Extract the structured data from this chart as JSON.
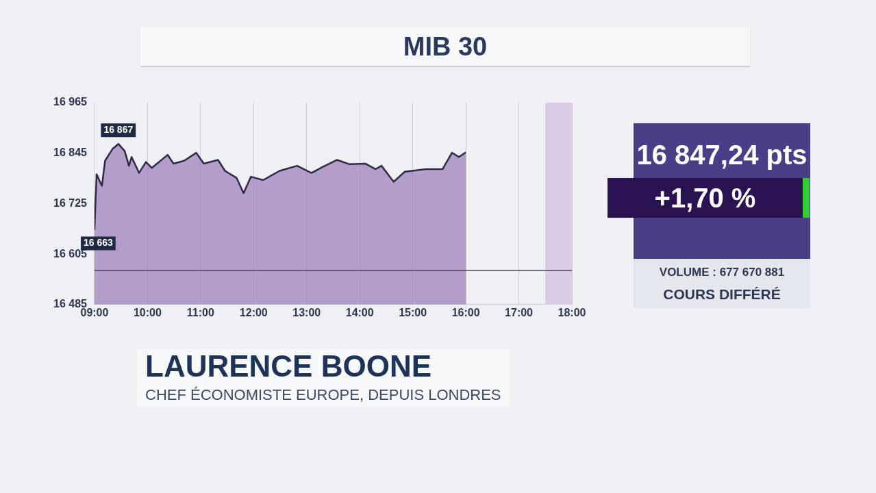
{
  "chart_data": {
    "type": "area",
    "title": "MIB 30",
    "x": [
      9,
      9.04,
      9.14,
      9.2,
      9.34,
      9.45,
      9.57,
      9.65,
      9.7,
      9.84,
      9.97,
      10.08,
      10.38,
      10.49,
      10.69,
      10.92,
      11.06,
      11.33,
      11.46,
      11.68,
      11.81,
      11.95,
      12.18,
      12.49,
      12.82,
      13.09,
      13.3,
      13.57,
      13.8,
      14.11,
      14.3,
      14.41,
      14.64,
      14.85,
      15.25,
      15.56,
      15.74,
      15.87,
      16
    ],
    "series": [
      {
        "color": "#2e2a4a",
        "values": [
          16663,
          16795,
          16767,
          16827,
          16855,
          16867,
          16850,
          16815,
          16836,
          16798,
          16824,
          16810,
          16841,
          16820,
          16827,
          16846,
          16820,
          16829,
          16803,
          16786,
          16750,
          16789,
          16781,
          16803,
          16815,
          16798,
          16812,
          16829,
          16819,
          16820,
          16807,
          16815,
          16777,
          16801,
          16807,
          16807,
          16846,
          16836,
          16847
        ]
      }
    ],
    "xlim": [
      9,
      18
    ],
    "xticks": [
      {
        "value": 9,
        "label": "09:00"
      },
      {
        "value": 10,
        "label": "10:00"
      },
      {
        "value": 11,
        "label": "11:00"
      },
      {
        "value": 12,
        "label": "12:00"
      },
      {
        "value": 13,
        "label": "13:00"
      },
      {
        "value": 14,
        "label": "14:00"
      },
      {
        "value": 15,
        "label": "15:00"
      },
      {
        "value": 16,
        "label": "16:00"
      },
      {
        "value": 17,
        "label": "17:00"
      },
      {
        "value": 18,
        "label": "18:00"
      }
    ],
    "ylim": [
      16485,
      16965
    ],
    "yticks": [
      {
        "value": 16485,
        "label": "16 485"
      },
      {
        "value": 16605,
        "label": "16 605"
      },
      {
        "value": 16725,
        "label": "16 725"
      },
      {
        "value": 16845,
        "label": "16 845"
      },
      {
        "value": 16965,
        "label": "16 965"
      }
    ],
    "grid": "x",
    "legend": false,
    "marker": "none",
    "line_style": "solid",
    "ref_lines": [
      {
        "axis": "y",
        "value": 16566,
        "color": "#4a4560"
      }
    ],
    "bands": [
      {
        "axis": "x",
        "from": 17.5,
        "to": 18,
        "color": "#dccbe4"
      }
    ],
    "annotations": [
      {
        "text": "16 867",
        "x": 9.45,
        "y": 16867
      },
      {
        "text": "16 663",
        "x": 9,
        "y": 16663
      },
      "16 847,24 pts",
      "+1,70 %",
      "VOLUME : 677 670 881",
      "COURS DIFFÉRÉ",
      "LAURENCE BOONE",
      "CHEF ÉCONOMISTE EUROPE, DEPUIS LONDRES"
    ]
  }
}
